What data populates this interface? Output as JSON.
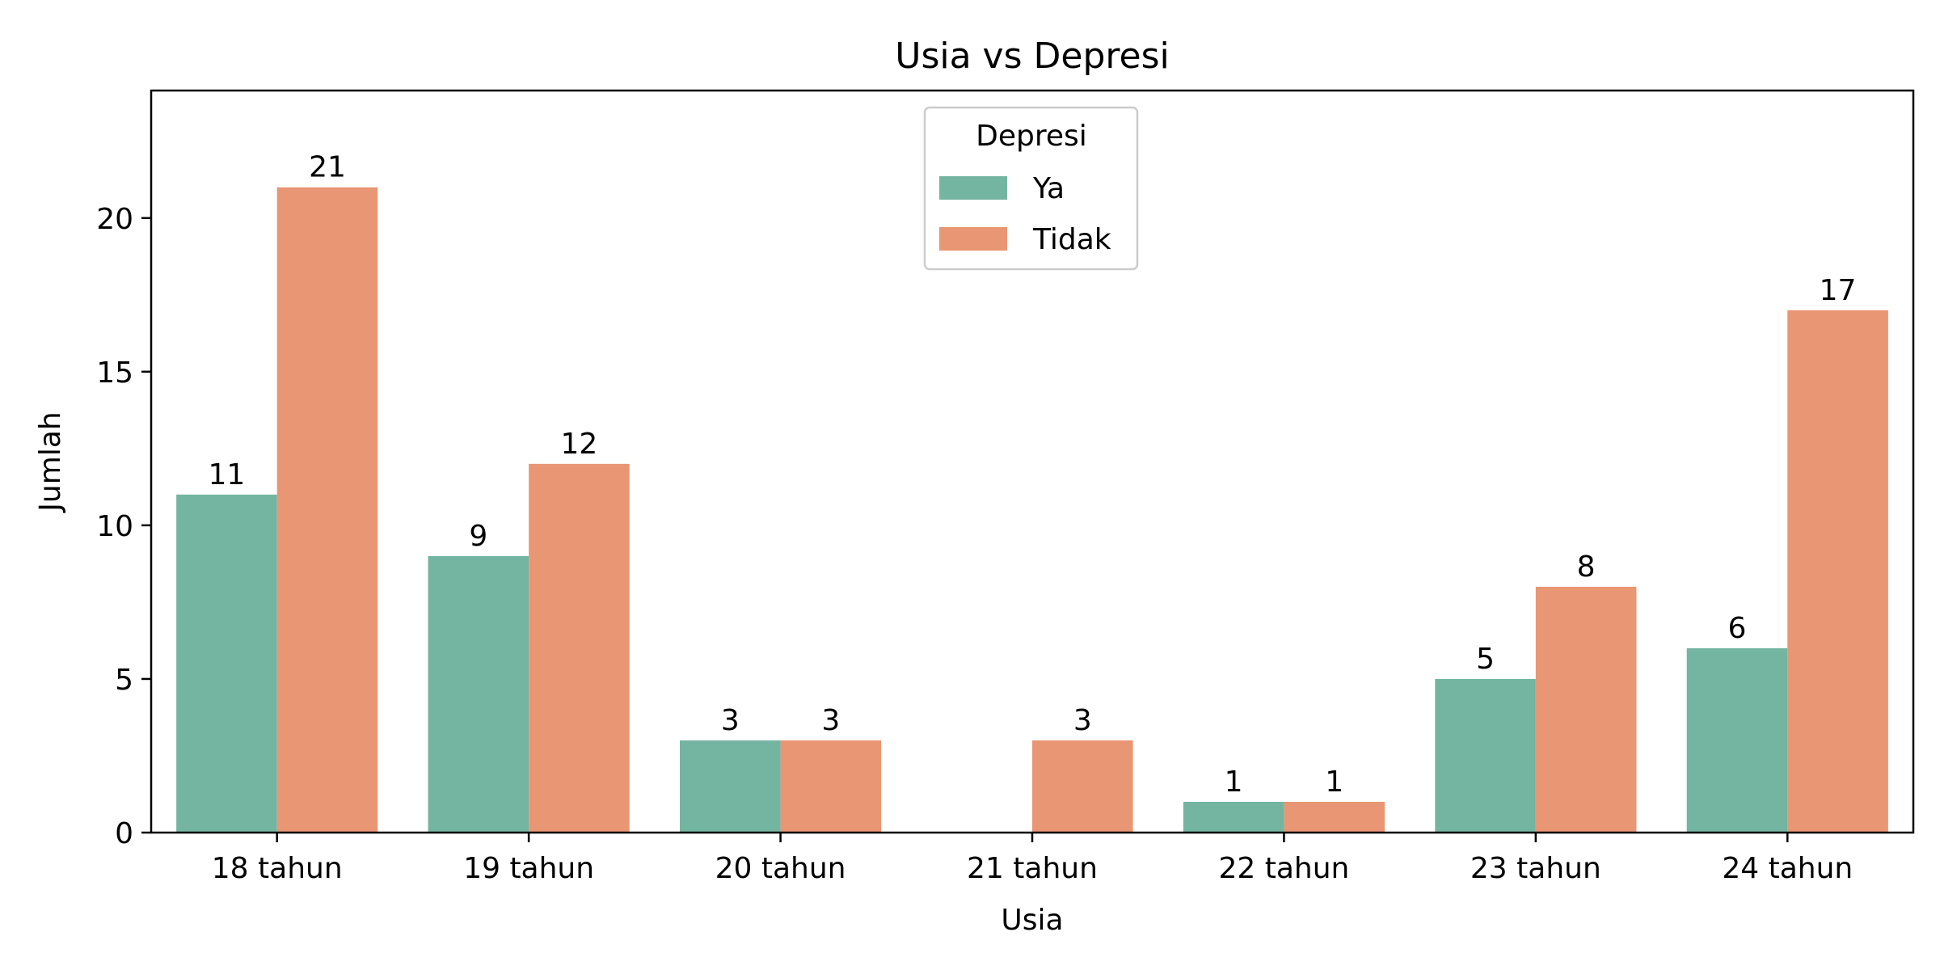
{
  "chart_data": {
    "type": "bar",
    "title": "Usia vs Depresi",
    "xlabel": "Usia",
    "ylabel": "Jumlah",
    "categories": [
      "18 tahun",
      "19 tahun",
      "20 tahun",
      "21 tahun",
      "22 tahun",
      "23 tahun",
      "24 tahun"
    ],
    "series": [
      {
        "name": "Ya",
        "color": "#73b5a0",
        "values": [
          11,
          9,
          3,
          0,
          1,
          5,
          6
        ]
      },
      {
        "name": "Tidak",
        "color": "#e99674",
        "values": [
          21,
          12,
          3,
          3,
          1,
          8,
          17
        ]
      }
    ],
    "data_labels": {
      "Ya": [
        "11",
        "9",
        "3",
        "",
        "1",
        "5",
        "6"
      ],
      "Tidak": [
        "21",
        "12",
        "3",
        "3",
        "1",
        "8",
        "17"
      ]
    },
    "ylim": [
      0,
      24.15
    ],
    "yticks": [
      0,
      5,
      10,
      15,
      20
    ],
    "legend": {
      "title": "Depresi",
      "position": "upper center"
    },
    "grid": false
  }
}
